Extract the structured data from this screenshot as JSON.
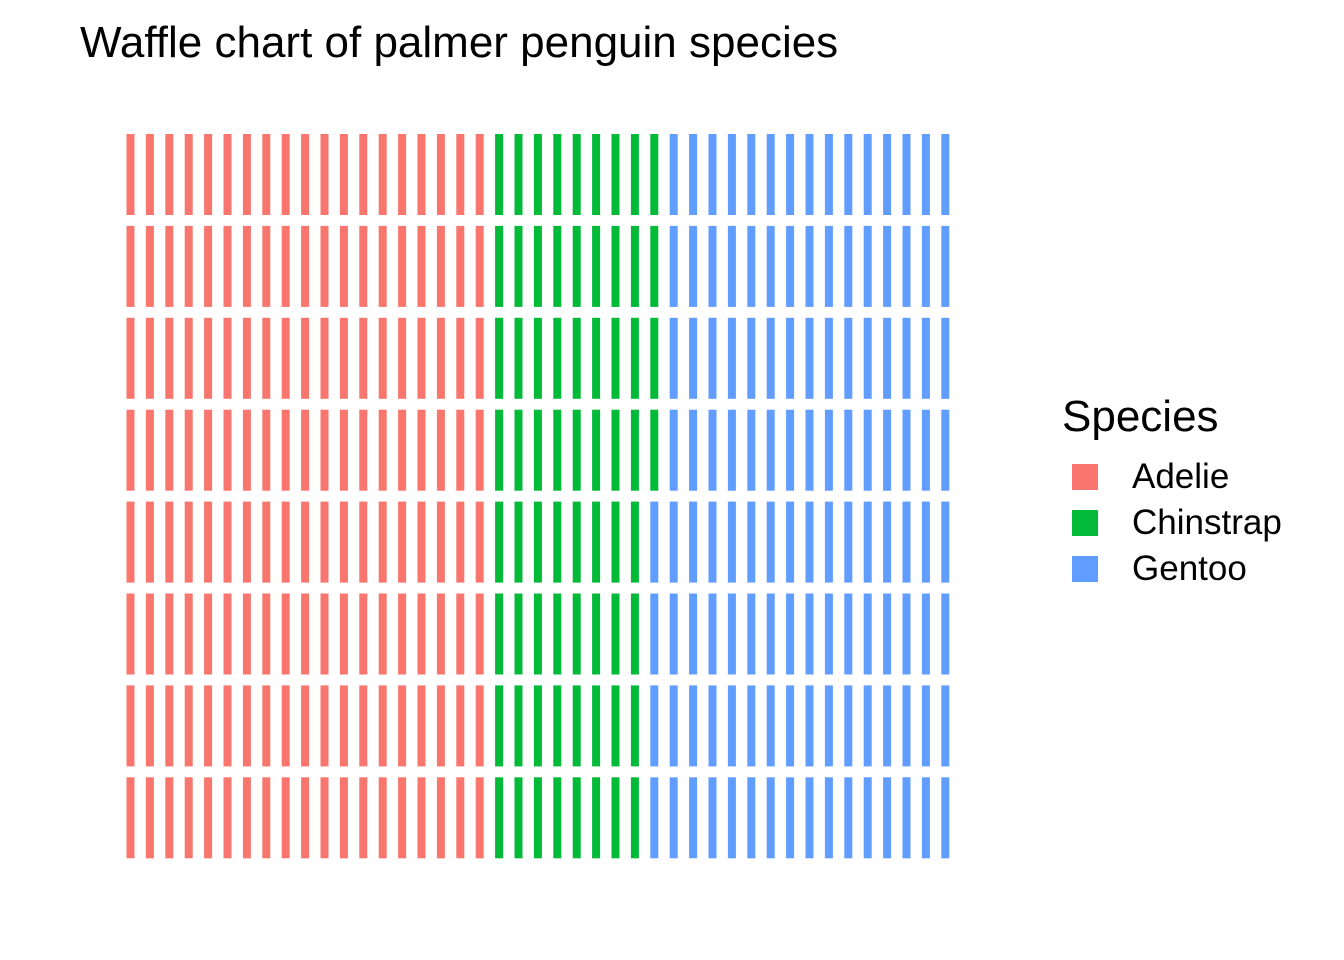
{
  "chart_data": {
    "type": "waffle",
    "title": "Waffle chart of palmer penguin species",
    "legend_title": "Species",
    "legend_position": "right",
    "rows": 8,
    "columns": 43,
    "fill_order": "column-wise, top to bottom",
    "series": [
      {
        "name": "Adelie",
        "value": 152,
        "color": "#F8766D"
      },
      {
        "name": "Chinstrap",
        "value": 68,
        "color": "#00BA38"
      },
      {
        "name": "Gentoo",
        "value": 124,
        "color": "#619CFF"
      }
    ],
    "total": 344
  }
}
